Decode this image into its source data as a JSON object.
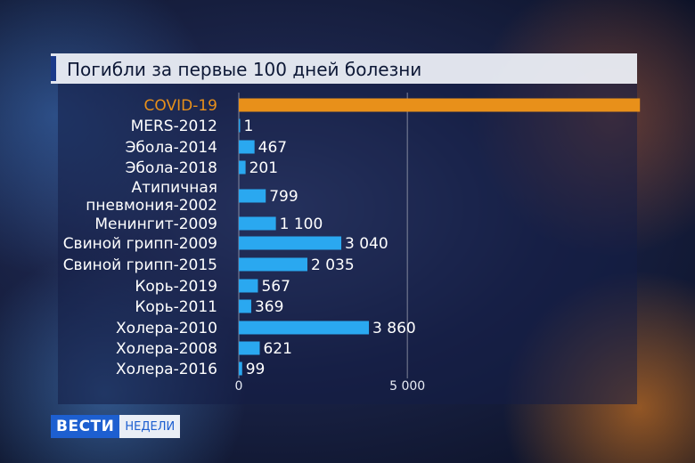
{
  "title": "Погибли за первые 100 дней болезни",
  "logo": {
    "main": "ВЕСТИ",
    "sub": "НЕДЕЛИ"
  },
  "colors": {
    "highlight": "#e8901a",
    "bar": "#2aa8f0"
  },
  "chart_data": {
    "type": "bar",
    "orientation": "horizontal",
    "xlim": [
      0,
      12000
    ],
    "grid": true,
    "x_ticks": [
      {
        "value": 0,
        "label": "0"
      },
      {
        "value": 5000,
        "label": "5 000"
      }
    ],
    "categories": [
      {
        "label": [
          "COVID-19"
        ],
        "value": 11900,
        "value_label": "",
        "highlight": true
      },
      {
        "label": [
          "MERS-2012"
        ],
        "value": 1,
        "value_label": "1",
        "highlight": false
      },
      {
        "label": [
          "Эбола-2014"
        ],
        "value": 467,
        "value_label": "467",
        "highlight": false
      },
      {
        "label": [
          "Эбола-2018"
        ],
        "value": 201,
        "value_label": "201",
        "highlight": false
      },
      {
        "label": [
          "Атипичная",
          "пневмония-2002"
        ],
        "value": 799,
        "value_label": "799",
        "highlight": false
      },
      {
        "label": [
          "Менингит-2009"
        ],
        "value": 1100,
        "value_label": "1 100",
        "highlight": false
      },
      {
        "label": [
          "Свиной грипп-2009"
        ],
        "value": 3040,
        "value_label": "3 040",
        "highlight": false
      },
      {
        "label": [
          "Свиной грипп-2015"
        ],
        "value": 2035,
        "value_label": "2 035",
        "highlight": false
      },
      {
        "label": [
          "Корь-2019"
        ],
        "value": 567,
        "value_label": "567",
        "highlight": false
      },
      {
        "label": [
          "Корь-2011"
        ],
        "value": 369,
        "value_label": "369",
        "highlight": false
      },
      {
        "label": [
          "Холера-2010"
        ],
        "value": 3860,
        "value_label": "3 860",
        "highlight": false
      },
      {
        "label": [
          "Холера-2008"
        ],
        "value": 621,
        "value_label": "621",
        "highlight": false
      },
      {
        "label": [
          "Холера-2016"
        ],
        "value": 99,
        "value_label": "99",
        "highlight": false
      }
    ]
  }
}
